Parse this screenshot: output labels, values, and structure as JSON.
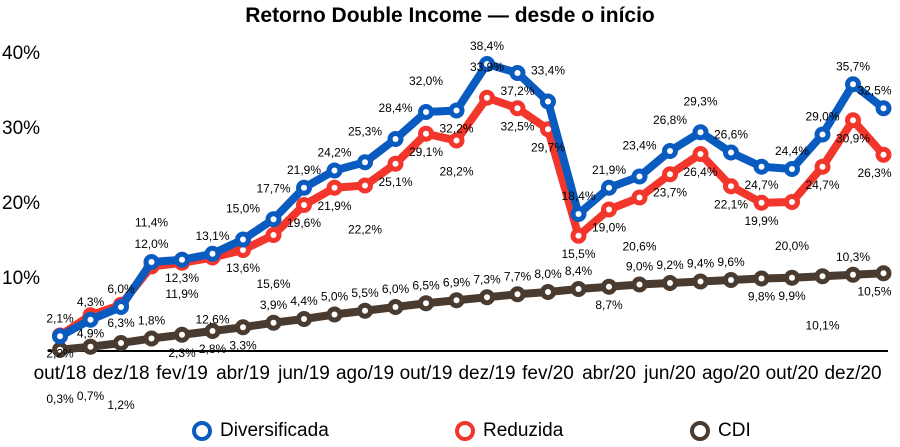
{
  "chart_data": {
    "type": "line",
    "title": "Retorno Double Income — desde o início",
    "xlabel": "",
    "ylabel": "",
    "ylim": [
      0,
      40
    ],
    "yticks": [
      "10%",
      "20%",
      "30%",
      "40%"
    ],
    "ytick_values": [
      10,
      20,
      30,
      40
    ],
    "xtick_labels": [
      "out/18",
      "dez/18",
      "fev/19",
      "abr/19",
      "jun/19",
      "ago/19",
      "out/19",
      "dez/19",
      "fev/20",
      "abr/20",
      "jun/20",
      "ago/20",
      "out/20",
      "dez/20"
    ],
    "x": [
      "out/18",
      "nov/18",
      "dez/18",
      "jan/19",
      "fev/19",
      "mar/19",
      "abr/19",
      "mai/19",
      "jun/19",
      "jul/19",
      "ago/19",
      "set/19",
      "out/19",
      "nov/19",
      "dez/19",
      "jan/20",
      "fev/20",
      "mar/20",
      "abr/20",
      "mai/20",
      "jun/20",
      "jul/20",
      "ago/20",
      "set/20",
      "out/20",
      "nov/20",
      "dez/20",
      "jan/21"
    ],
    "legend_position": "bottom",
    "series": [
      {
        "name": "Diversificada",
        "color": "#0a5bbf",
        "values": [
          2.1,
          4.3,
          6.0,
          12.0,
          12.3,
          13.1,
          15.0,
          17.7,
          21.9,
          24.2,
          25.3,
          28.4,
          32.0,
          32.2,
          38.4,
          37.2,
          33.4,
          18.4,
          21.9,
          23.4,
          26.8,
          29.3,
          26.6,
          24.7,
          24.4,
          29.0,
          35.7,
          32.5
        ]
      },
      {
        "name": "Reduzida",
        "color": "#f2362c",
        "values": [
          2.2,
          4.9,
          6.3,
          11.4,
          11.9,
          12.6,
          13.6,
          15.6,
          19.6,
          21.9,
          22.2,
          25.1,
          29.1,
          28.2,
          33.9,
          32.5,
          29.7,
          15.5,
          19.0,
          20.6,
          23.7,
          26.4,
          22.1,
          19.9,
          20.0,
          24.7,
          30.9,
          26.3
        ]
      },
      {
        "name": "CDI",
        "color": "#4a3b30",
        "values": [
          0.3,
          0.7,
          1.2,
          1.8,
          2.3,
          2.8,
          3.3,
          3.9,
          4.4,
          5.0,
          5.5,
          6.0,
          6.5,
          6.9,
          7.3,
          7.7,
          8.0,
          8.4,
          8.7,
          9.0,
          9.2,
          9.4,
          9.6,
          9.8,
          9.9,
          10.1,
          10.3,
          10.5
        ]
      }
    ]
  }
}
